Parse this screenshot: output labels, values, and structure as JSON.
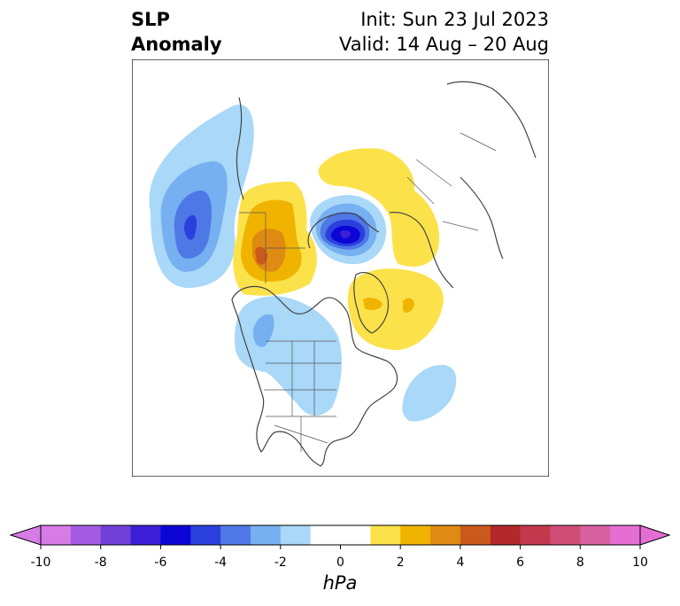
{
  "title": {
    "left_line1": "SLP",
    "left_line2": "Anomaly",
    "right_line1": "Init: Sun 23 Jul 2023",
    "right_line2": "Valid: 14 Aug – 20 Aug"
  },
  "colorbar": {
    "unit": "hPa",
    "ticks": [
      "-10",
      "-8",
      "-6",
      "-4",
      "-2",
      "0",
      "2",
      "4",
      "6",
      "8",
      "10"
    ],
    "colors": [
      "#d77be6",
      "#a45be3",
      "#7040d8",
      "#3c1fd6",
      "#0b05d6",
      "#2b3fdc",
      "#4e78e6",
      "#77b0f0",
      "#a9d8f8",
      "#ffffff",
      "#ffffff",
      "#fce24a",
      "#f0b400",
      "#df8a13",
      "#c95a1b",
      "#b3282a",
      "#c4384e",
      "#cf4e78",
      "#d861a2",
      "#e56ed4"
    ],
    "min_color": "#d77be6",
    "max_color": "#e56ed4"
  }
}
